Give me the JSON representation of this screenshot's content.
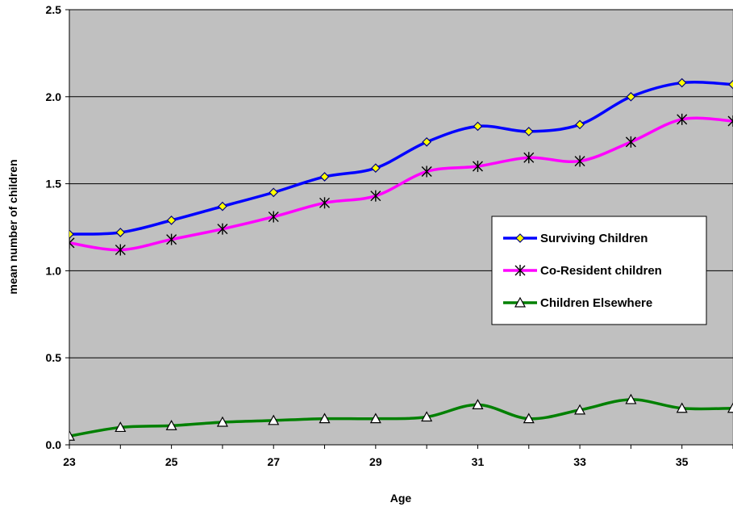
{
  "chart_data": {
    "type": "line",
    "title": "",
    "xlabel": "Age",
    "ylabel": "mean number of children",
    "xlim": [
      23,
      36
    ],
    "ylim": [
      0,
      2.5
    ],
    "x_ticks": [
      "23",
      "25",
      "27",
      "29",
      "31",
      "33",
      "35"
    ],
    "y_ticks": [
      "0.0",
      "0.5",
      "1.0",
      "1.5",
      "2.0",
      "2.5"
    ],
    "grid": true,
    "plot_background": "#c0c0c0",
    "legend_position": "right",
    "x": [
      23,
      24,
      25,
      26,
      27,
      28,
      29,
      30,
      31,
      32,
      33,
      34,
      35,
      36
    ],
    "series": [
      {
        "name": "Surviving Children",
        "color": "#0000ff",
        "marker": "diamond",
        "marker_fill": "#ffff00",
        "marker_stroke": "#000080",
        "values": [
          1.21,
          1.22,
          1.29,
          1.37,
          1.45,
          1.54,
          1.59,
          1.74,
          1.83,
          1.8,
          1.84,
          2.0,
          2.08,
          2.07
        ]
      },
      {
        "name": "Co-Resident children",
        "color": "#ff00ff",
        "marker": "asterisk",
        "marker_stroke": "#000000",
        "values": [
          1.16,
          1.12,
          1.18,
          1.24,
          1.31,
          1.39,
          1.43,
          1.57,
          1.6,
          1.65,
          1.63,
          1.74,
          1.87,
          1.86
        ]
      },
      {
        "name": "Children Elsewhere",
        "color": "#008000",
        "marker": "triangle",
        "marker_fill": "#ffffff",
        "marker_stroke": "#000000",
        "values": [
          0.05,
          0.1,
          0.11,
          0.13,
          0.14,
          0.15,
          0.15,
          0.16,
          0.23,
          0.15,
          0.2,
          0.26,
          0.21,
          0.21
        ]
      }
    ]
  }
}
